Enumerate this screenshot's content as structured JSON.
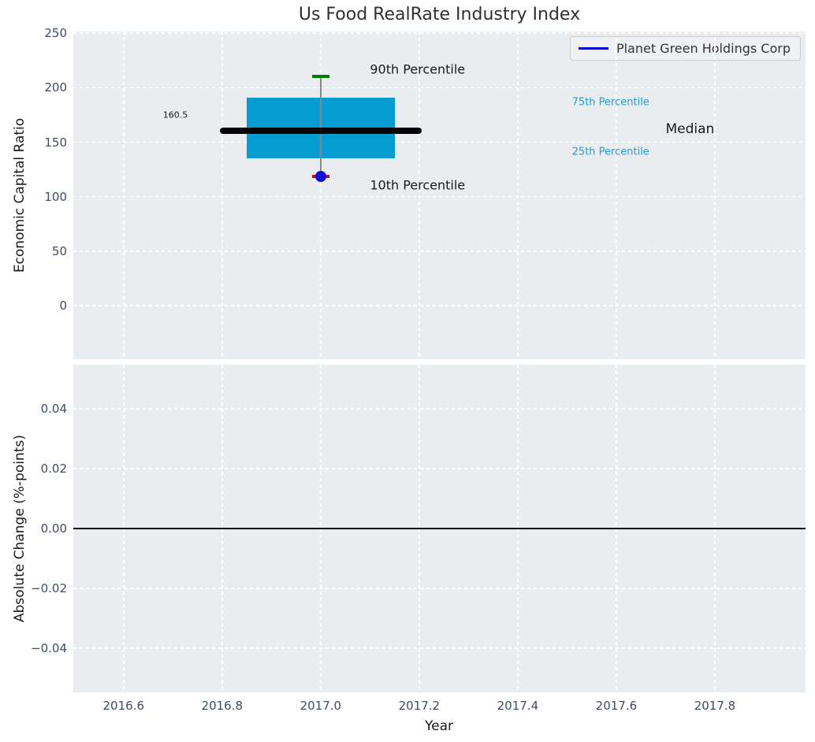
{
  "figure": {
    "title": "Us Food RealRate Industry Index"
  },
  "legend": {
    "label": "Planet Green Holdings Corp",
    "line_color": "#0000cc",
    "position": "upper right"
  },
  "colors": {
    "axes_background": "#e9edf0",
    "grid": "#ffffff",
    "box_fill": "#049cd1",
    "median_line": "#000000",
    "whisker": "#888888",
    "cap_90th": "#008000",
    "cap_10th": "#e00000",
    "company_marker": "#0d0dde",
    "tick_label": "#3f4c63",
    "annotation_dark": "#1a1a1a",
    "annotation_cyan": "#1b9ed8",
    "zero_line": "#000000"
  },
  "chart_data": [
    {
      "type": "box",
      "title": "Us Food RealRate Industry Index",
      "ylabel": "Economic Capital Ratio",
      "xlabel": "",
      "grid": "dashed-white",
      "xlim": [
        2016.498,
        2017.984
      ],
      "ylim": [
        -49,
        251.5
      ],
      "show_xtick_labels": false,
      "xticks": [
        {
          "v": 2016.6,
          "label": "2016.6"
        },
        {
          "v": 2016.8,
          "label": "2016.8"
        },
        {
          "v": 2017.0,
          "label": "2017.0"
        },
        {
          "v": 2017.2,
          "label": "2017.2"
        },
        {
          "v": 2017.4,
          "label": "2017.4"
        },
        {
          "v": 2017.6,
          "label": "2017.6"
        },
        {
          "v": 2017.8,
          "label": "2017.8"
        }
      ],
      "yticks": [
        {
          "v": 0,
          "label": "0"
        },
        {
          "v": 50,
          "label": "50"
        },
        {
          "v": 100,
          "label": "100"
        },
        {
          "v": 150,
          "label": "150"
        },
        {
          "v": 200,
          "label": "200"
        },
        {
          "v": 250,
          "label": "250"
        }
      ],
      "box": {
        "x": 2017.0,
        "box_left": 2016.85,
        "box_right": 2017.15,
        "median_left": 2016.795,
        "median_right": 2017.205,
        "p90": 210,
        "q75": 190.5,
        "median": 160.5,
        "q25": 135,
        "p10": 118.5,
        "company_value": 118.5,
        "company_year": 2017.0,
        "cap_half_width_years": 0.018,
        "median_label": "160.5"
      },
      "annotations": [
        {
          "text": "90th Percentile",
          "x": 2017.1,
          "y": 217,
          "color": "#1a1a1a",
          "size": 16
        },
        {
          "text": "10th Percentile",
          "x": 2017.1,
          "y": 111,
          "color": "#1a1a1a",
          "size": 16
        },
        {
          "text": "160.5",
          "x": 2016.68,
          "y": 175,
          "color": "#1a1a1a",
          "size": 11
        },
        {
          "text": "75th Percentile",
          "x": 2017.51,
          "y": 186.5,
          "color": "#1b9ed8",
          "size": 13
        },
        {
          "text": "Median",
          "x": 2017.7,
          "y": 162,
          "color": "#1a1a1a",
          "size": 17
        },
        {
          "text": "25th Percentile",
          "x": 2017.51,
          "y": 141,
          "color": "#1b9ed8",
          "size": 13
        }
      ]
    },
    {
      "type": "line",
      "ylabel": "Absolute Change (%-points)",
      "xlabel": "Year",
      "grid": "dashed-white",
      "xlim": [
        2016.498,
        2017.984
      ],
      "ylim": [
        -0.0547,
        0.0547
      ],
      "show_xtick_labels": true,
      "xticks": [
        {
          "v": 2016.6,
          "label": "2016.6"
        },
        {
          "v": 2016.8,
          "label": "2016.8"
        },
        {
          "v": 2017.0,
          "label": "2017.0"
        },
        {
          "v": 2017.2,
          "label": "2017.2"
        },
        {
          "v": 2017.4,
          "label": "2017.4"
        },
        {
          "v": 2017.6,
          "label": "2017.6"
        },
        {
          "v": 2017.8,
          "label": "2017.8"
        }
      ],
      "yticks": [
        {
          "v": 0.04,
          "label": "0.04"
        },
        {
          "v": 0.02,
          "label": "0.02"
        },
        {
          "v": 0.0,
          "label": "0.00"
        },
        {
          "v": -0.02,
          "label": "−0.02"
        },
        {
          "v": -0.04,
          "label": "−0.04"
        }
      ],
      "zero_line": 0.0,
      "annotations": []
    }
  ]
}
